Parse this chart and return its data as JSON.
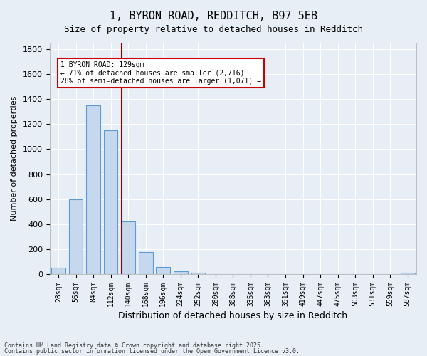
{
  "title1": "1, BYRON ROAD, REDDITCH, B97 5EB",
  "title2": "Size of property relative to detached houses in Redditch",
  "xlabel": "Distribution of detached houses by size in Redditch",
  "ylabel": "Number of detached properties",
  "bar_labels": [
    "28sqm",
    "56sqm",
    "84sqm",
    "112sqm",
    "140sqm",
    "168sqm",
    "196sqm",
    "224sqm",
    "252sqm",
    "280sqm",
    "308sqm",
    "335sqm",
    "363sqm",
    "391sqm",
    "419sqm",
    "447sqm",
    "475sqm",
    "503sqm",
    "531sqm",
    "559sqm",
    "587sqm"
  ],
  "bar_values": [
    50,
    600,
    1350,
    1150,
    420,
    175,
    60,
    25,
    10,
    0,
    0,
    0,
    0,
    0,
    0,
    0,
    0,
    0,
    0,
    0,
    10
  ],
  "bar_color": "#c5d8ed",
  "bar_edge_color": "#5b9bd5",
  "vline_x": 4,
  "vline_color": "#8b0000",
  "annotation_title": "1 BYRON ROAD: 129sqm",
  "annotation_line1": "← 71% of detached houses are smaller (2,716)",
  "annotation_line2": "28% of semi-detached houses are larger (1,071) →",
  "annotation_box_color": "#ffffff",
  "annotation_box_edge": "#cc0000",
  "ylim": [
    0,
    1850
  ],
  "yticks": [
    0,
    200,
    400,
    600,
    800,
    1000,
    1200,
    1400,
    1600,
    1800
  ],
  "bg_color": "#e8eef5",
  "plot_bg_color": "#e8eef5",
  "footer1": "Contains HM Land Registry data © Crown copyright and database right 2025.",
  "footer2": "Contains public sector information licensed under the Open Government Licence v3.0."
}
